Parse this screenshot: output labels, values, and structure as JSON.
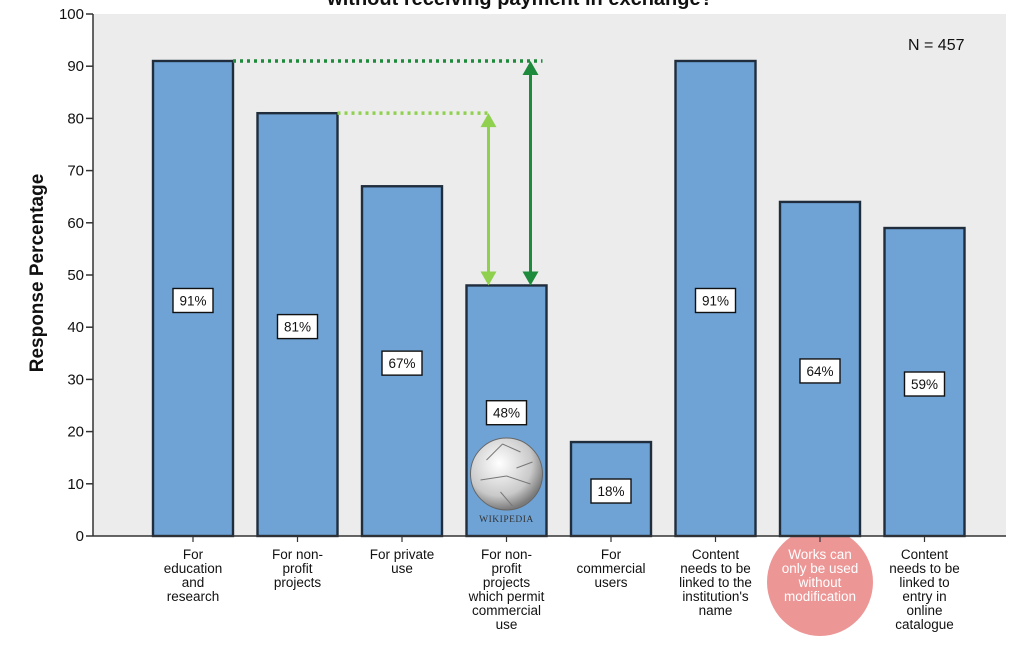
{
  "chart_data": {
    "type": "bar",
    "title": "without receiving payment in exchange?",
    "ylabel": "Response Percentage",
    "xlabel": "",
    "ylim": [
      0,
      100
    ],
    "yticks": [
      0,
      10,
      20,
      30,
      40,
      50,
      60,
      70,
      80,
      90,
      100
    ],
    "annotation": "N = 457",
    "categories": [
      "For education and research",
      "For non-profit projects",
      "For private use",
      "For non-profit projects which permit commercial use",
      "For commercial users",
      "Content needs to be linked to the institution's name",
      "Works can only be used without modification",
      "Content needs to be linked to entry in online catalogue"
    ],
    "category_lines": [
      [
        "For",
        "education",
        "and",
        "research"
      ],
      [
        "For non-",
        "profit",
        "projects"
      ],
      [
        "For private",
        "use"
      ],
      [
        "For non-",
        "profit",
        "projects",
        "which permit",
        "commercial",
        "use"
      ],
      [
        "For",
        "commercial",
        "users"
      ],
      [
        "Content",
        "needs to be",
        "linked to the",
        "institution's",
        "name"
      ],
      [
        "Works can",
        "only be used",
        "without",
        "modification"
      ],
      [
        "Content",
        "needs to be",
        "linked to",
        "entry in",
        "online",
        "catalogue"
      ]
    ],
    "values": [
      91,
      81,
      67,
      48,
      18,
      91,
      64,
      59
    ],
    "data_labels": [
      "91%",
      "81%",
      "67%",
      "48%",
      "18%",
      "91%",
      "64%",
      "59%"
    ],
    "highlighted_category": "Works can only be used without modification",
    "comparison_arrows": [
      {
        "from_category": "For non-profit projects",
        "to_category": "For non-profit projects which permit commercial use",
        "from_value": 81,
        "to_value": 48,
        "color": "#8fd14f"
      },
      {
        "from_category": "For education and research",
        "to_category": "For non-profit projects which permit commercial use",
        "from_value": 91,
        "to_value": 48,
        "color": "#1e8a3c"
      }
    ],
    "colors": {
      "bar_fill": "#6fa3d6",
      "bar_stroke": "#1f2d3d",
      "plot_background": "#ececec",
      "highlight": "#e57373",
      "arrow_light": "#8fd14f",
      "arrow_dark": "#1e8a3c"
    },
    "icon": "wikipedia-globe-icon",
    "icon_text": "WIKIPEDIA",
    "grid": false
  }
}
